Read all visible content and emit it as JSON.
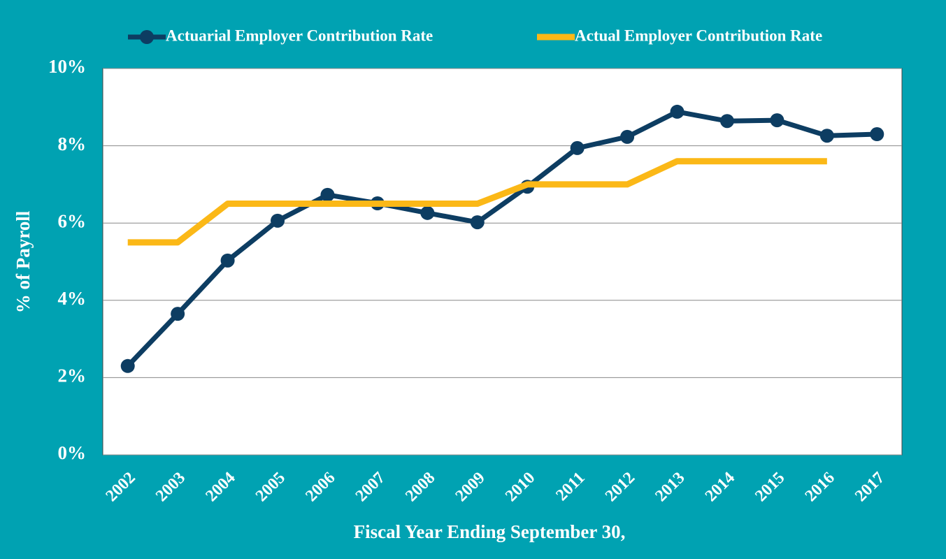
{
  "chart_data": {
    "type": "line",
    "xlabel": "Fiscal Year Ending September 30,",
    "ylabel": "% of Payroll",
    "categories": [
      "2002",
      "2003",
      "2004",
      "2005",
      "2006",
      "2007",
      "2008",
      "2009",
      "2010",
      "2011",
      "2012",
      "2013",
      "2014",
      "2015",
      "2016",
      "2017"
    ],
    "series": [
      {
        "name": "Actuarial Employer Contribution Rate",
        "color": "#0d3d62",
        "marker": true,
        "values": [
          2.3,
          3.65,
          5.03,
          6.06,
          6.73,
          6.51,
          6.26,
          6.02,
          6.94,
          7.94,
          8.23,
          8.88,
          8.64,
          8.66,
          8.26,
          8.3
        ]
      },
      {
        "name": "Actual Employer Contribution Rate",
        "color": "#fbb817",
        "marker": false,
        "values": [
          5.5,
          5.5,
          6.5,
          6.5,
          6.5,
          6.5,
          6.5,
          6.5,
          7.0,
          7.0,
          7.0,
          7.6,
          7.6,
          7.6,
          7.6,
          null
        ]
      }
    ],
    "ylim": [
      0,
      10
    ],
    "yticks": [
      {
        "value": 0,
        "label": "0%"
      },
      {
        "value": 2,
        "label": "2%"
      },
      {
        "value": 4,
        "label": "4%"
      },
      {
        "value": 6,
        "label": "6%"
      },
      {
        "value": 8,
        "label": "8%"
      },
      {
        "value": 10,
        "label": "10%"
      }
    ],
    "grid": true,
    "legend": "top"
  }
}
